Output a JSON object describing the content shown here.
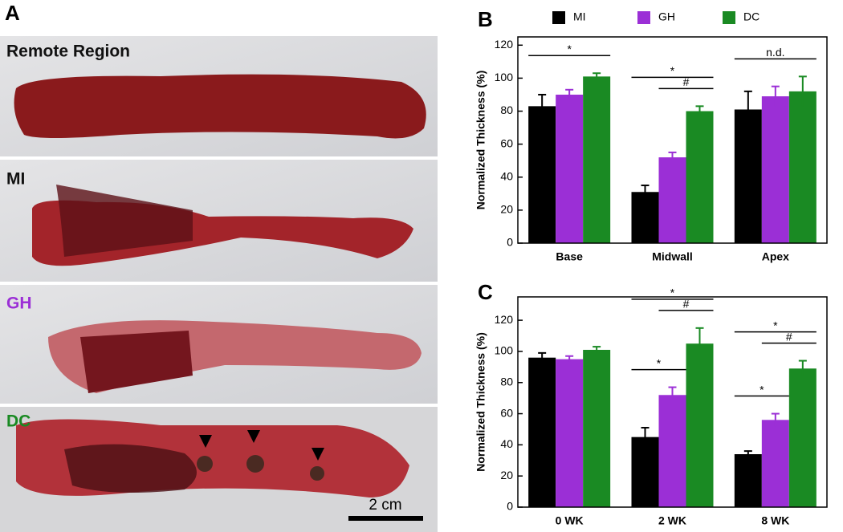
{
  "panel_a": {
    "label": "A",
    "sections": [
      "Remote Region",
      "MI",
      "GH",
      "DC"
    ],
    "scale_bar": "2 cm"
  },
  "chart_data": [
    {
      "type": "bar",
      "panel": "B",
      "ylabel": "Normalized Thickness (%)",
      "categories": [
        "Base",
        "Midwall",
        "Apex"
      ],
      "series": [
        {
          "name": "MI",
          "color": "#000000",
          "values": [
            83,
            31,
            81
          ],
          "errors": [
            7,
            4,
            11
          ]
        },
        {
          "name": "GH",
          "color": "#9b2fd6",
          "values": [
            90,
            52,
            89
          ],
          "errors": [
            3,
            3,
            6
          ]
        },
        {
          "name": "DC",
          "color": "#1a8a23",
          "values": [
            101,
            80,
            92
          ],
          "errors": [
            2,
            3,
            9
          ]
        }
      ],
      "ylim": [
        0,
        125
      ],
      "yticks": [
        0,
        20,
        40,
        60,
        80,
        100,
        120
      ],
      "legend": "top",
      "annotations": [
        {
          "text": "*",
          "category": "Base",
          "between": [
            "MI",
            "DC"
          ]
        },
        {
          "text": "#",
          "category": "Midwall",
          "between": [
            "GH",
            "DC"
          ]
        },
        {
          "text": "*",
          "category": "Midwall",
          "between": [
            "MI",
            "DC"
          ]
        },
        {
          "text": "n.d.",
          "category": "Apex",
          "between": [
            "MI",
            "DC"
          ]
        }
      ]
    },
    {
      "type": "bar",
      "panel": "C",
      "ylabel": "Normalized Thickness (%)",
      "categories": [
        "0 WK",
        "2 WK",
        "8 WK"
      ],
      "series": [
        {
          "name": "MI",
          "color": "#000000",
          "values": [
            96,
            45,
            34
          ],
          "errors": [
            3,
            6,
            2
          ]
        },
        {
          "name": "GH",
          "color": "#9b2fd6",
          "values": [
            95,
            72,
            56
          ],
          "errors": [
            2,
            5,
            4
          ]
        },
        {
          "name": "DC",
          "color": "#1a8a23",
          "values": [
            101,
            105,
            89
          ],
          "errors": [
            2,
            10,
            5
          ]
        }
      ],
      "ylim": [
        0,
        135
      ],
      "yticks": [
        0,
        20,
        40,
        60,
        80,
        100,
        120
      ],
      "annotations": [
        {
          "text": "*",
          "category": "2 WK",
          "between": [
            "MI",
            "GH"
          ]
        },
        {
          "text": "#",
          "category": "2 WK",
          "between": [
            "GH",
            "DC"
          ]
        },
        {
          "text": "*",
          "category": "2 WK",
          "between": [
            "MI",
            "DC"
          ]
        },
        {
          "text": "*",
          "category": "8 WK",
          "between": [
            "MI",
            "GH"
          ]
        },
        {
          "text": "#",
          "category": "8 WK",
          "between": [
            "GH",
            "DC"
          ]
        },
        {
          "text": "*",
          "category": "8 WK",
          "between": [
            "MI",
            "DC"
          ]
        }
      ]
    }
  ]
}
